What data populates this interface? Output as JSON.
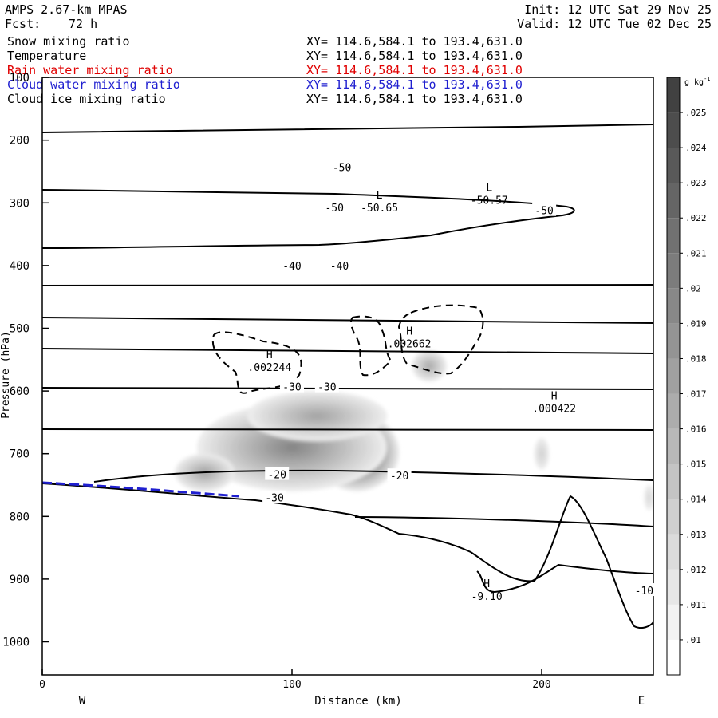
{
  "header": {
    "model": "AMPS 2.67-km MPAS",
    "fcst_label": "Fcst:",
    "fcst_hours": "72 h",
    "init": "Init: 12 UTC Sat 29 Nov 25",
    "valid": "Valid: 12 UTC Tue 02 Dec 25"
  },
  "legend": [
    {
      "name": "Snow mixing ratio",
      "xy": "XY= 114.6,584.1 to 193.4,631.0",
      "color": "#000000"
    },
    {
      "name": "Temperature",
      "xy": "XY= 114.6,584.1 to 193.4,631.0",
      "color": "#000000"
    },
    {
      "name": "Rain water mixing ratio",
      "xy": "XY= 114.6,584.1 to 193.4,631.0",
      "color": "#e00000"
    },
    {
      "name": "Cloud water mixing ratio",
      "xy": "XY= 114.6,584.1 to 193.4,631.0",
      "color": "#2020d0"
    },
    {
      "name": "Cloud ice mixing ratio",
      "xy": "XY= 114.6,584.1 to 193.4,631.0",
      "color": "#000000"
    }
  ],
  "chart_data": {
    "type": "heatmap",
    "xlabel": "Distance (km)",
    "ylabel": "Pressure (hPa)",
    "xlim": [
      0,
      245
    ],
    "ylim": [
      1050,
      100
    ],
    "x_ticks": [
      "0",
      "100",
      "200"
    ],
    "x_tick_values": [
      0,
      100,
      200
    ],
    "y_ticks": [
      "100",
      "200",
      "300",
      "400",
      "500",
      "600",
      "700",
      "800",
      "900",
      "1000"
    ],
    "y_tick_values": [
      100,
      200,
      300,
      400,
      500,
      600,
      700,
      800,
      900,
      1000
    ],
    "left_end": "W",
    "right_end": "E",
    "colorbar": {
      "unit": "g kg",
      "unit_sup": "-1",
      "levels": [
        ".01",
        ".011",
        ".012",
        ".013",
        ".014",
        ".015",
        ".016",
        ".017",
        ".018",
        ".019",
        ".02",
        ".021",
        ".022",
        ".023",
        ".024",
        ".025"
      ]
    },
    "snow_blobs": [
      {
        "x": 126,
        "p": 698,
        "rx": 17,
        "rp": 62,
        "level": 25
      },
      {
        "x": 100,
        "p": 690,
        "rx": 38,
        "rp": 70,
        "level": 14
      },
      {
        "x": 65,
        "p": 730,
        "rx": 12,
        "rp": 30,
        "level": 10
      },
      {
        "x": 110,
        "p": 640,
        "rx": 28,
        "rp": 40,
        "level": 10
      },
      {
        "x": 155,
        "p": 560,
        "rx": 7,
        "rp": 25,
        "level": 9
      },
      {
        "x": 200,
        "p": 700,
        "rx": 3,
        "rp": 25,
        "level": 4
      },
      {
        "x": 243,
        "p": 770,
        "rx": 2,
        "rp": 20,
        "level": 3
      }
    ],
    "temperature_labels": [
      {
        "x": 120,
        "p": 243,
        "text": "-50"
      },
      {
        "x": 201,
        "p": 312,
        "text": "-50"
      },
      {
        "x": 117,
        "p": 307,
        "text": "-50"
      },
      {
        "x": 100,
        "p": 400,
        "text": "-40"
      },
      {
        "x": 119,
        "p": 400,
        "text": "-40"
      },
      {
        "x": 100,
        "p": 593,
        "text": "-30"
      },
      {
        "x": 114,
        "p": 593,
        "text": "-30"
      },
      {
        "x": 94,
        "p": 733,
        "text": "-20"
      },
      {
        "x": 143,
        "p": 735,
        "text": "-20"
      },
      {
        "x": 93,
        "p": 770,
        "text": "-30"
      },
      {
        "x": 241,
        "p": 918,
        "text": "-10"
      }
    ],
    "extrema": [
      {
        "type": "L",
        "x": 135,
        "p": 293,
        "value": "-50.65"
      },
      {
        "type": "L",
        "x": 179,
        "p": 281,
        "value": "-50.57"
      },
      {
        "type": "H",
        "x": 91,
        "p": 548,
        "value": ".002244"
      },
      {
        "type": "H",
        "x": 147,
        "p": 510,
        "value": ".002662"
      },
      {
        "type": "H",
        "x": 205,
        "p": 613,
        "value": ".000422"
      },
      {
        "type": "H",
        "x": 178,
        "p": 913,
        "value": "-9.10"
      }
    ]
  }
}
